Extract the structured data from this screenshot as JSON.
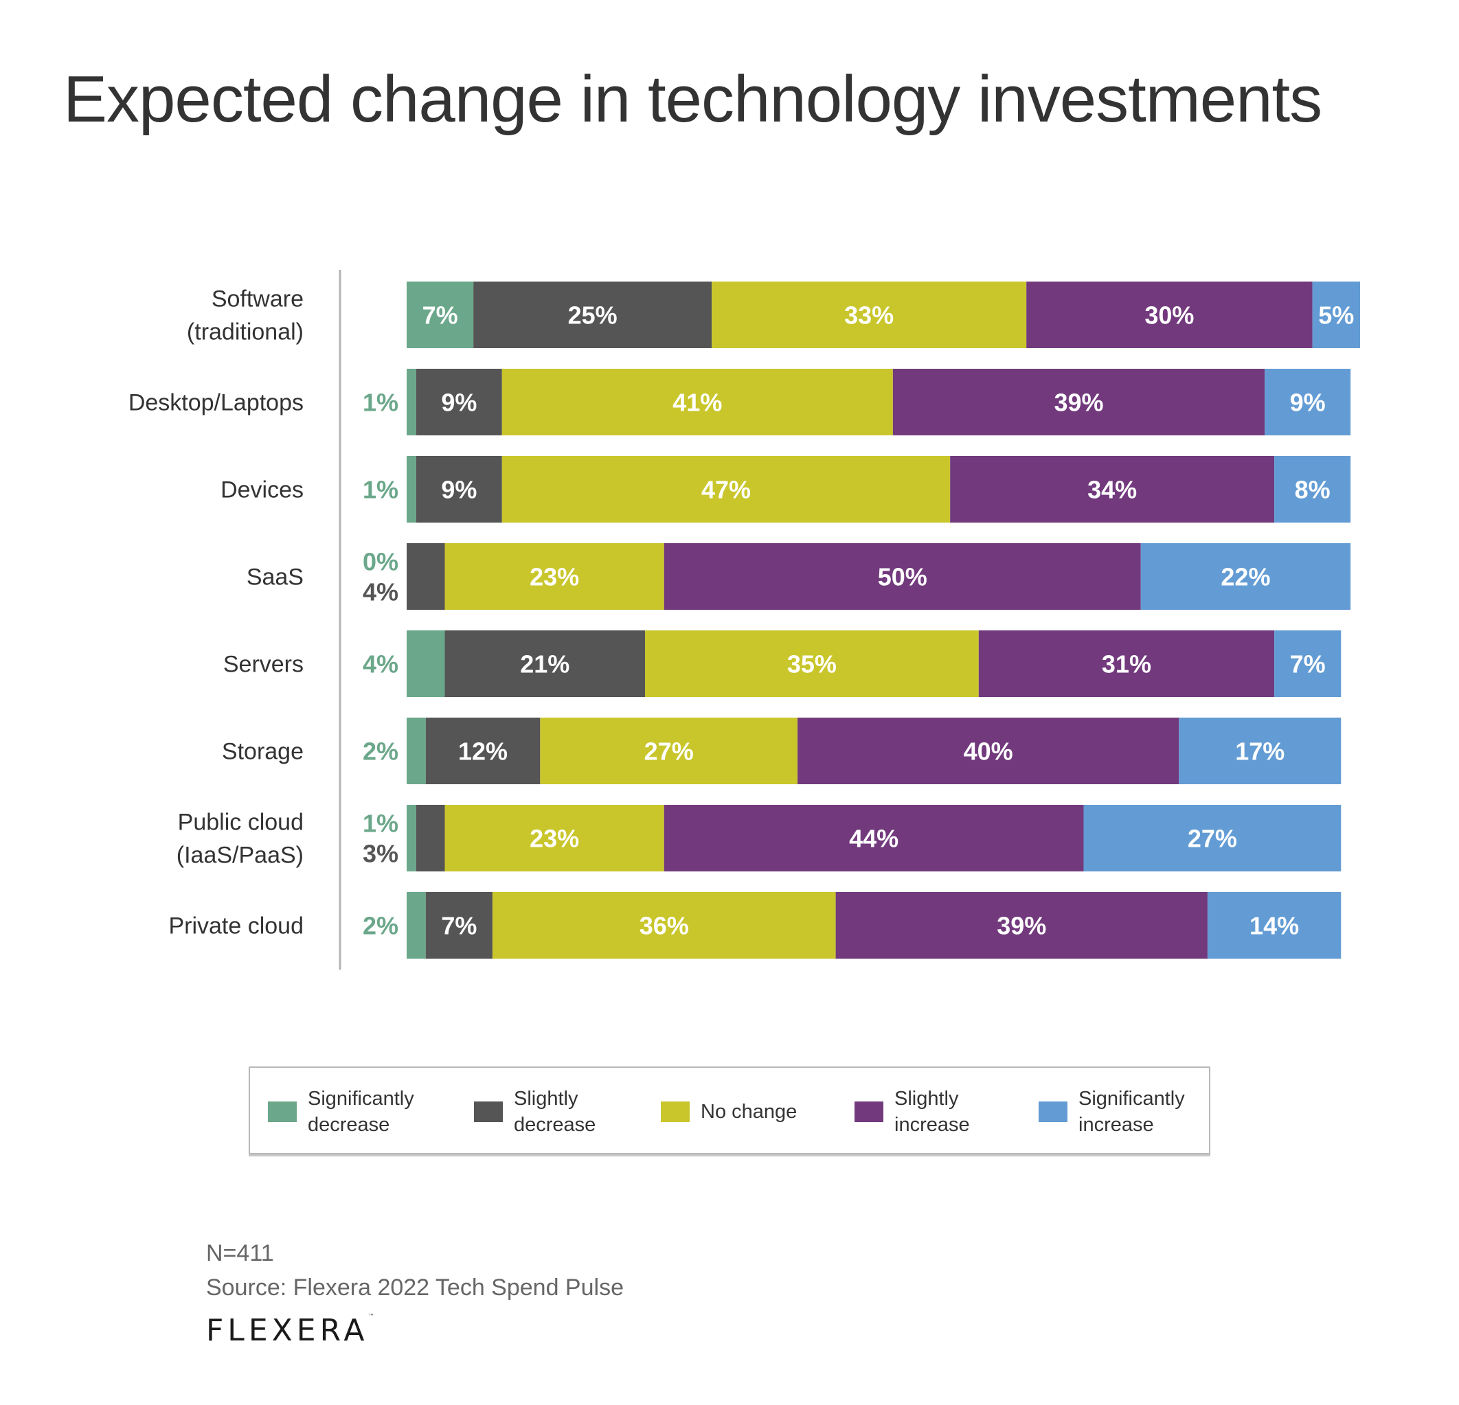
{
  "title": "Expected change in technology investments",
  "colors": {
    "significantly_decrease": "#6ba78a",
    "slightly_decrease": "#555555",
    "no_change": "#c9c62c",
    "slightly_increase": "#723a7d",
    "significantly_increase": "#639cd4",
    "axis_line": "#b3b3b3"
  },
  "chart_data": {
    "type": "bar",
    "orientation": "horizontal",
    "stacked": true,
    "title": "Expected change in technology investments",
    "xlabel": "",
    "ylabel": "",
    "unit": "%",
    "categories": [
      "Software\n(traditional)",
      "Desktop/Laptops",
      "Devices",
      "SaaS",
      "Servers",
      "Storage",
      "Public cloud\n(IaaS/PaaS)",
      "Private cloud"
    ],
    "series": [
      {
        "name": "Significantly decrease",
        "key": "significantly_decrease",
        "values": [
          7,
          1,
          1,
          0,
          4,
          2,
          1,
          2
        ]
      },
      {
        "name": "Slightly decrease",
        "key": "slightly_decrease",
        "values": [
          25,
          9,
          9,
          4,
          21,
          12,
          3,
          7
        ]
      },
      {
        "name": "No change",
        "key": "no_change",
        "values": [
          33,
          41,
          47,
          23,
          35,
          27,
          23,
          36
        ]
      },
      {
        "name": "Slightly increase",
        "key": "slightly_increase",
        "values": [
          30,
          39,
          34,
          50,
          31,
          40,
          44,
          39
        ]
      },
      {
        "name": "Significantly increase",
        "key": "significantly_increase",
        "values": [
          5,
          9,
          8,
          22,
          7,
          17,
          27,
          14
        ]
      }
    ],
    "outside_labels": [
      [],
      [
        {
          "text": "1%",
          "series": 0
        }
      ],
      [
        {
          "text": "1%",
          "series": 0
        }
      ],
      [
        {
          "text": "0%",
          "series": 0
        },
        {
          "text": "4%",
          "series": 1
        }
      ],
      [
        {
          "text": "4%",
          "series": 0
        }
      ],
      [
        {
          "text": "2%",
          "series": 0
        }
      ],
      [
        {
          "text": "1%",
          "series": 0
        },
        {
          "text": "3%",
          "series": 1
        }
      ],
      [
        {
          "text": "2%",
          "series": 0
        }
      ]
    ],
    "inside_label_hidden": [
      [
        false,
        false,
        false,
        false,
        false
      ],
      [
        true,
        false,
        false,
        false,
        false
      ],
      [
        true,
        false,
        false,
        false,
        false
      ],
      [
        true,
        true,
        false,
        false,
        false
      ],
      [
        true,
        false,
        false,
        false,
        false
      ],
      [
        true,
        false,
        false,
        false,
        false
      ],
      [
        true,
        true,
        false,
        false,
        false
      ],
      [
        true,
        false,
        false,
        false,
        false
      ]
    ],
    "legend": {
      "placement": "bottom",
      "entries": [
        "Significantly\ndecrease",
        "Slightly\ndecrease",
        "No change",
        "Slightly\nincrease",
        "Significantly\nincrease"
      ]
    },
    "grid": false
  },
  "footer": {
    "sample_size": "N=411",
    "source": "Source: Flexera 2022 Tech Spend Pulse"
  },
  "logo": {
    "text": "FLEXERA",
    "trademark": "™"
  }
}
